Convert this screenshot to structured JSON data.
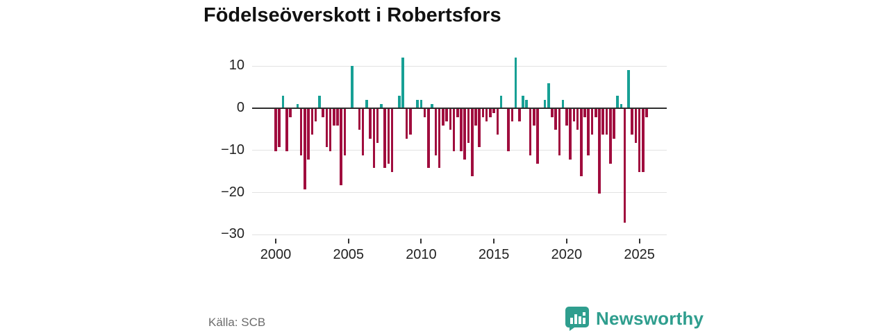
{
  "title": "Födelseöverskott i Robertsfors",
  "source_label": "Källa: SCB",
  "logo": {
    "name": "Newsworthy",
    "icon": "bar-chart-speech-bubble-icon"
  },
  "colors": {
    "positive": "#17A095",
    "negative": "#A00D3E",
    "grid": "#e2e2e2",
    "zero_line": "#2e2e2e",
    "title_text": "#111111",
    "axis_text": "#222222",
    "source_text": "#6b6b6b",
    "logo_teal": "#2f9e8e",
    "background": "#ffffff"
  },
  "chart_data": {
    "type": "bar",
    "title": "Födelseöverskott i Robertsfors",
    "xlabel": "",
    "ylabel": "",
    "frequency": "quarterly",
    "start_year": 2000,
    "start_quarter": 1,
    "values": [
      -10,
      -9,
      3,
      -10,
      -2,
      0,
      1,
      -11,
      -19,
      -12,
      -6,
      -3,
      3,
      -2,
      -9,
      -10,
      -4,
      -4,
      -18,
      -11,
      0,
      10,
      0,
      -5,
      -11,
      2,
      -7,
      -14,
      -8,
      1,
      -14,
      -13,
      -15,
      0,
      3,
      12,
      -7,
      -6,
      0,
      2,
      2,
      -2,
      -14,
      1,
      -11,
      -14,
      -4,
      -3,
      -5,
      -10,
      -2,
      -10,
      -12,
      -8,
      -16,
      -4,
      -9,
      -2,
      -3,
      -2,
      -1,
      -6,
      3,
      0,
      -10,
      -3,
      12,
      -3,
      3,
      2,
      -11,
      -4,
      -13,
      0,
      2,
      6,
      -2,
      -5,
      -11,
      2,
      -4,
      -12,
      -3,
      -5,
      -16,
      -2,
      -11,
      -6,
      -2,
      -20,
      -6,
      -6,
      -13,
      -7,
      3,
      1,
      -27,
      9,
      -6,
      -8,
      -15,
      -15,
      -2
    ],
    "ylim": [
      -30,
      12.5
    ],
    "y_ticks": [
      {
        "label": "10",
        "value": 10
      },
      {
        "label": "0",
        "value": 0
      },
      {
        "label": "−10",
        "value": -10
      },
      {
        "label": "−20",
        "value": -20
      },
      {
        "label": "−30",
        "value": -30
      }
    ],
    "x_ticks": [
      {
        "label": "2000",
        "index": 0
      },
      {
        "label": "2005",
        "index": 20
      },
      {
        "label": "2010",
        "index": 40
      },
      {
        "label": "2015",
        "index": 60
      },
      {
        "label": "2020",
        "index": 80
      },
      {
        "label": "2025",
        "index": 100
      }
    ],
    "grid": true,
    "legend": false
  }
}
